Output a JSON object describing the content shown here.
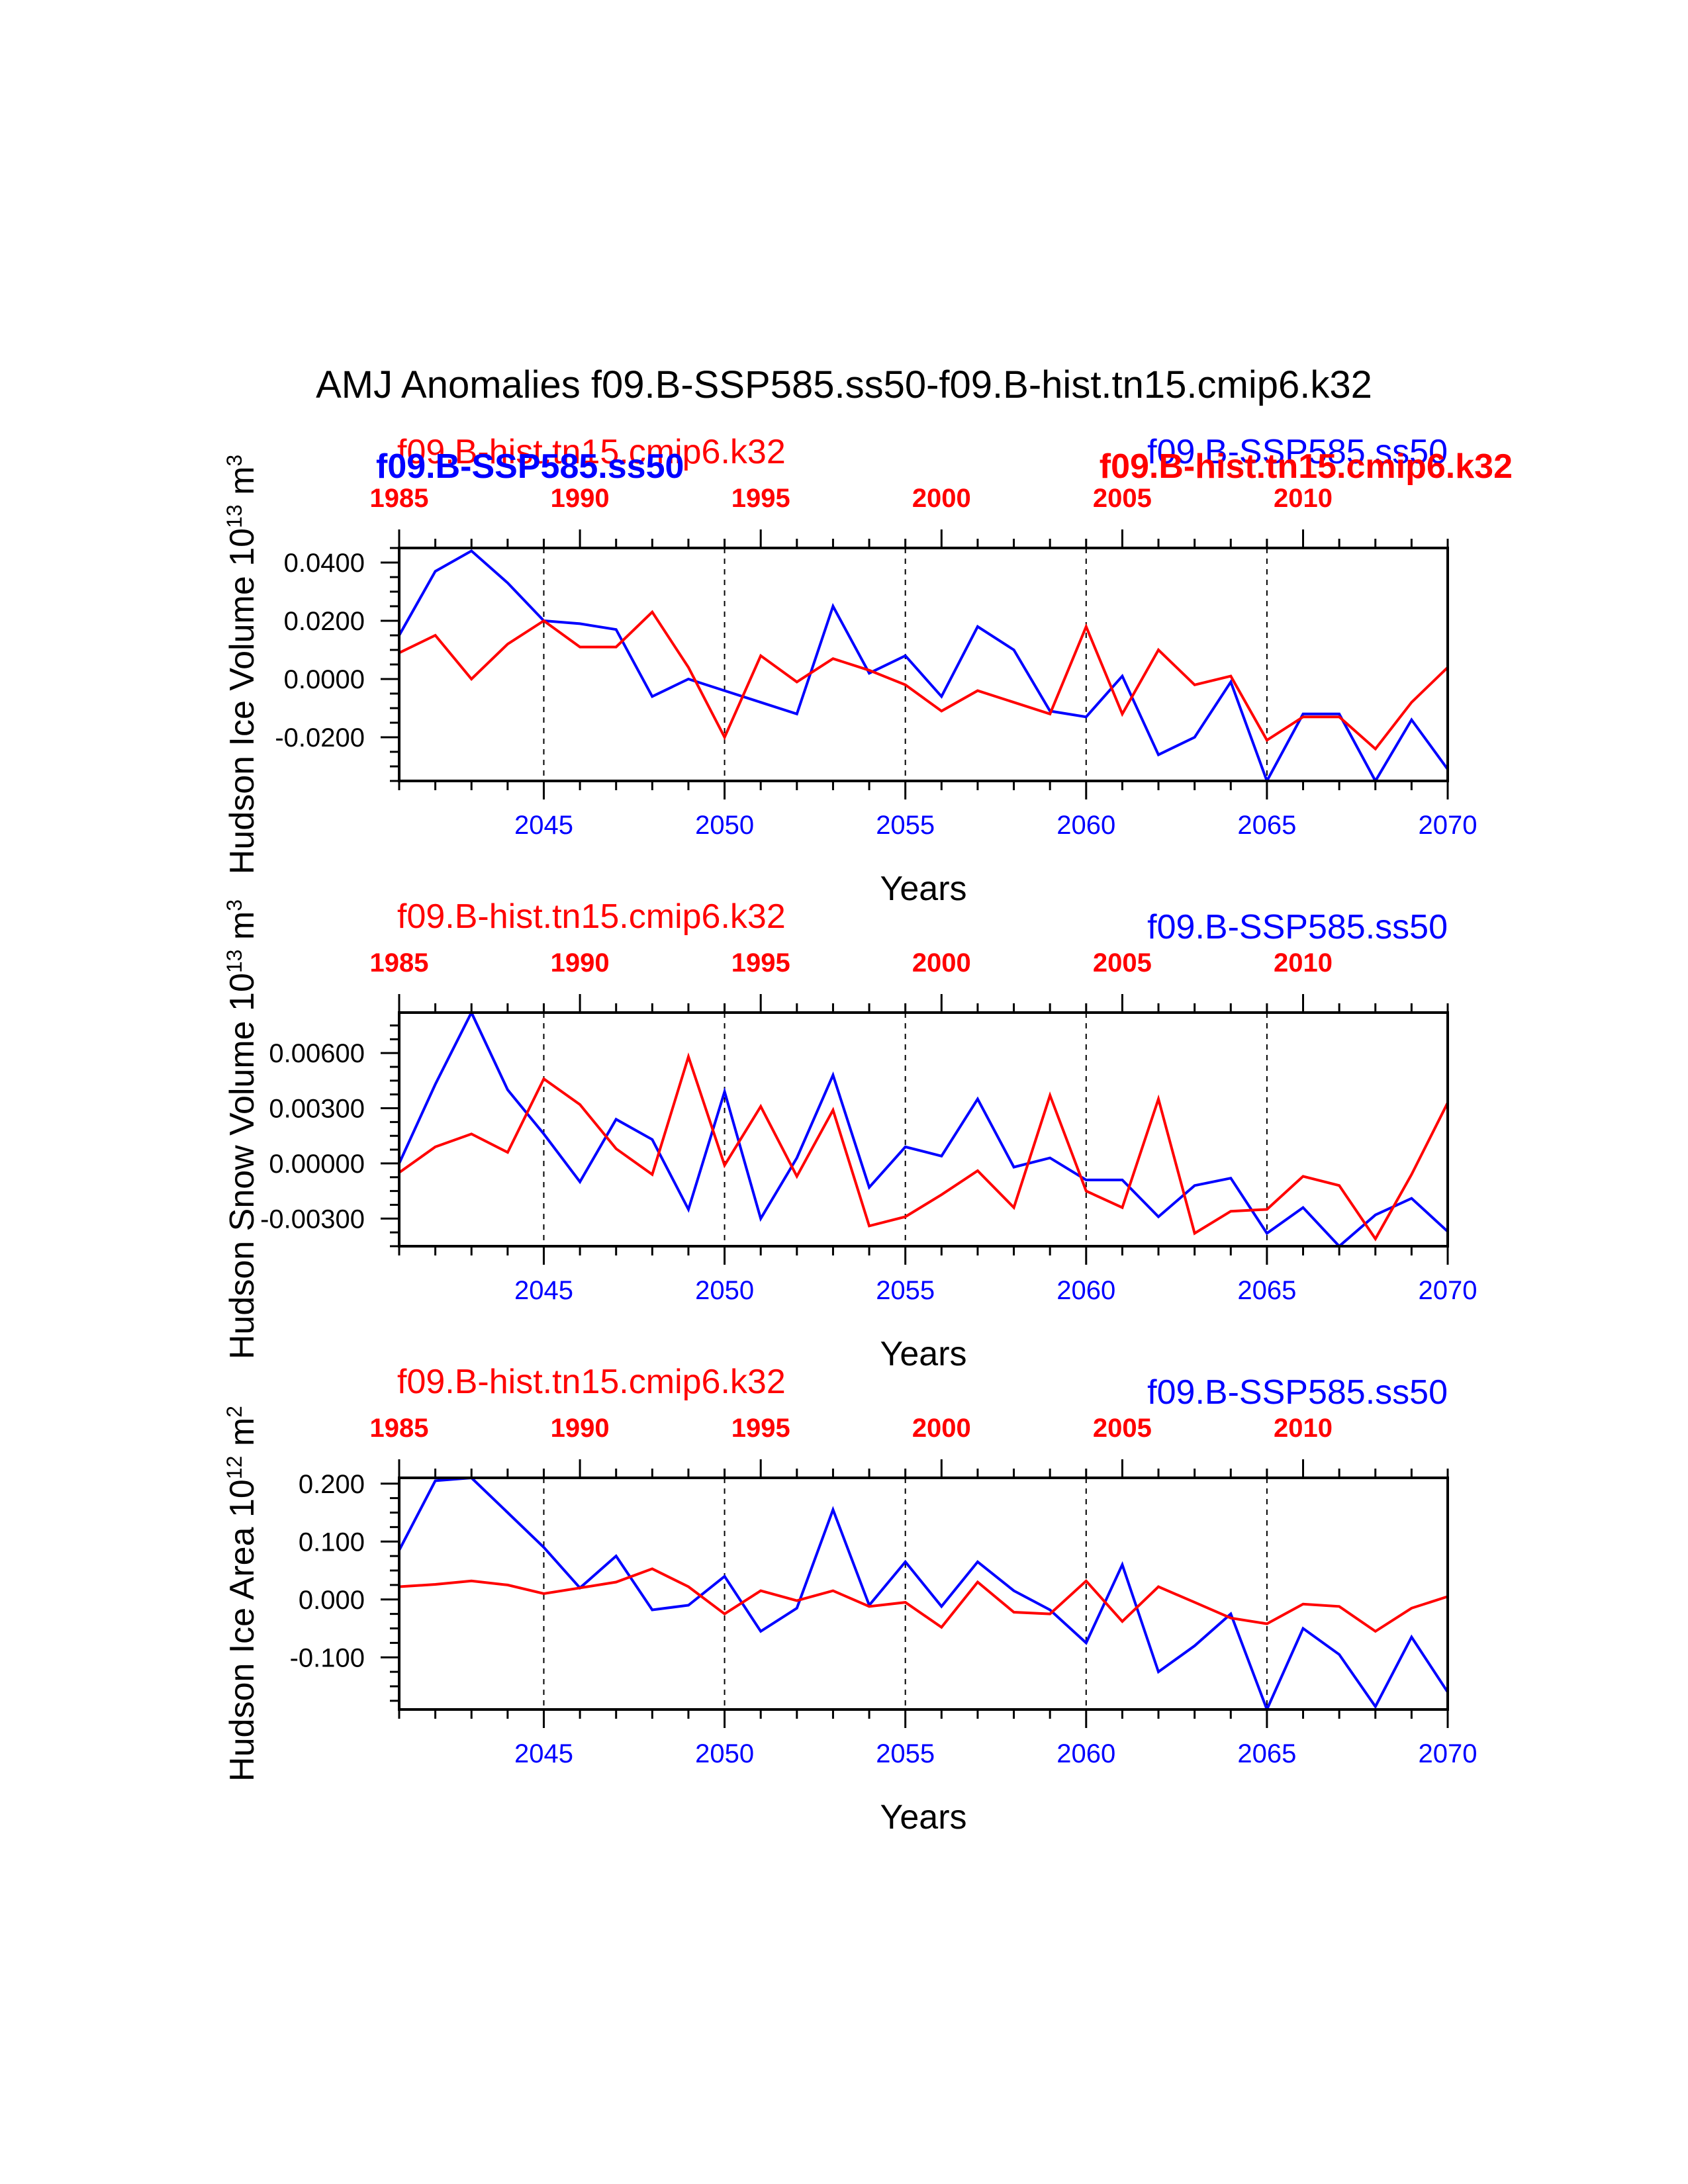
{
  "figure": {
    "title": "AMJ Anomalies f09.B-SSP585.ss50-f09.B-hist.tn15.cmip6.k32"
  },
  "colors": {
    "ssp": "#0000ff",
    "hist": "#ff0000",
    "axis": "#000000"
  },
  "chart_data": [
    {
      "type": "line",
      "ylabel": "Hudson Ice Volume 10",
      "ylabel_exp": "13",
      "ylabel_unit": " m",
      "ylabel_unit_exp": "3",
      "xlabel": "Years",
      "xlim": [
        2041,
        2070
      ],
      "ylim": [
        -0.035,
        0.045
      ],
      "yticks": [
        -0.02,
        0.0,
        0.02,
        0.04
      ],
      "ytick_labels": [
        "-0.0200",
        "0.0000",
        "0.0200",
        "0.0400"
      ],
      "xticks_bottom": [
        "2045",
        "2050",
        "2055",
        "2060",
        "2065",
        "2070"
      ],
      "xticks_top": [
        "1985",
        "1990",
        "1995",
        "2000",
        "2005",
        "2010"
      ],
      "top_axis_range": [
        1985,
        2014
      ],
      "label_hist": "f09.B-hist.tn15.cmip6.k32",
      "label_ssp": "f09.B-SSP585.ss50",
      "x": [
        2041,
        2042,
        2043,
        2044,
        2045,
        2046,
        2047,
        2048,
        2049,
        2050,
        2051,
        2052,
        2053,
        2054,
        2055,
        2056,
        2057,
        2058,
        2059,
        2060,
        2061,
        2062,
        2063,
        2064,
        2065,
        2066,
        2067,
        2068,
        2069,
        2070
      ],
      "series": [
        {
          "name": "f09.B-SSP585.ss50",
          "color": "#0000ff",
          "values": [
            0.015,
            0.037,
            0.044,
            0.033,
            0.02,
            0.019,
            0.017,
            -0.006,
            0.0,
            -0.004,
            -0.008,
            -0.012,
            0.025,
            0.002,
            0.008,
            -0.006,
            0.018,
            0.01,
            -0.011,
            -0.013,
            0.001,
            -0.026,
            -0.02,
            -0.001,
            -0.035,
            -0.012,
            -0.012,
            -0.035,
            -0.014,
            -0.031
          ]
        },
        {
          "name": "f09.B-hist.tn15.cmip6.k32",
          "color": "#ff0000",
          "values": [
            0.009,
            0.015,
            0.0,
            0.012,
            0.02,
            0.011,
            0.011,
            0.023,
            0.004,
            -0.02,
            0.008,
            -0.001,
            0.007,
            0.003,
            -0.002,
            -0.011,
            -0.004,
            -0.008,
            -0.012,
            0.018,
            -0.012,
            0.01,
            -0.002,
            0.001,
            -0.021,
            -0.013,
            -0.013,
            -0.024,
            -0.008,
            0.004
          ]
        }
      ]
    },
    {
      "type": "line",
      "ylabel": "Hudson Snow Volume 10",
      "ylabel_exp": "13",
      "ylabel_unit": " m",
      "ylabel_unit_exp": "3",
      "xlabel": "Years",
      "xlim": [
        2041,
        2070
      ],
      "ylim": [
        -0.0045,
        0.0082
      ],
      "yticks": [
        -0.003,
        0.0,
        0.003,
        0.006
      ],
      "ytick_labels": [
        "-0.00300",
        "0.00000",
        "0.00300",
        "0.00600"
      ],
      "xticks_bottom": [
        "2045",
        "2050",
        "2055",
        "2060",
        "2065",
        "2070"
      ],
      "xticks_top": [
        "1985",
        "1990",
        "1995",
        "2000",
        "2005",
        "2010"
      ],
      "top_axis_range": [
        1985,
        2014
      ],
      "label_hist": "f09.B-hist.tn15.cmip6.k32",
      "label_ssp": "f09.B-SSP585.ss50",
      "x": [
        2041,
        2042,
        2043,
        2044,
        2045,
        2046,
        2047,
        2048,
        2049,
        2050,
        2051,
        2052,
        2053,
        2054,
        2055,
        2056,
        2057,
        2058,
        2059,
        2060,
        2061,
        2062,
        2063,
        2064,
        2065,
        2066,
        2067,
        2068,
        2069,
        2070
      ],
      "series": [
        {
          "name": "f09.B-SSP585.ss50",
          "color": "#0000ff",
          "values": [
            0.0,
            0.0043,
            0.0082,
            0.004,
            0.0016,
            -0.001,
            0.0024,
            0.0013,
            -0.0025,
            0.0039,
            -0.003,
            0.0003,
            0.0048,
            -0.0013,
            0.0009,
            0.0004,
            0.0035,
            -0.0002,
            0.0003,
            -0.0009,
            -0.0009,
            -0.0029,
            -0.0012,
            -0.0008,
            -0.0038,
            -0.0024,
            -0.0045,
            -0.0028,
            -0.0019,
            -0.0037
          ]
        },
        {
          "name": "f09.B-hist.tn15.cmip6.k32",
          "color": "#ff0000",
          "values": [
            -0.0005,
            0.0009,
            0.0016,
            0.0006,
            0.0046,
            0.0032,
            0.0008,
            -0.0006,
            0.0058,
            -0.0001,
            0.0031,
            -0.0007,
            0.0029,
            -0.0034,
            -0.0029,
            -0.0017,
            -0.0004,
            -0.0024,
            0.0037,
            -0.0015,
            -0.0024,
            0.0035,
            -0.0038,
            -0.0026,
            -0.0025,
            -0.0007,
            -0.0012,
            -0.0041,
            -0.0006,
            0.0033
          ]
        }
      ]
    },
    {
      "type": "line",
      "ylabel": "Hudson Ice Area 10",
      "ylabel_exp": "12",
      "ylabel_unit": " m",
      "ylabel_unit_exp": "2",
      "xlabel": "Years",
      "xlim": [
        2041,
        2070
      ],
      "ylim": [
        -0.19,
        0.21
      ],
      "yticks": [
        -0.1,
        0.0,
        0.1,
        0.2
      ],
      "ytick_labels": [
        "-0.100",
        "0.000",
        "0.100",
        "0.200"
      ],
      "xticks_bottom": [
        "2045",
        "2050",
        "2055",
        "2060",
        "2065",
        "2070"
      ],
      "xticks_top": [
        "1985",
        "1990",
        "1995",
        "2000",
        "2005",
        "2010"
      ],
      "top_axis_range": [
        1985,
        2014
      ],
      "label_hist": "f09.B-hist.tn15.cmip6.k32",
      "label_ssp": "f09.B-SSP585.ss50",
      "x": [
        2041,
        2042,
        2043,
        2044,
        2045,
        2046,
        2047,
        2048,
        2049,
        2050,
        2051,
        2052,
        2053,
        2054,
        2055,
        2056,
        2057,
        2058,
        2059,
        2060,
        2061,
        2062,
        2063,
        2064,
        2065,
        2066,
        2067,
        2068,
        2069,
        2070
      ],
      "series": [
        {
          "name": "f09.B-SSP585.ss50",
          "color": "#0000ff",
          "values": [
            0.085,
            0.205,
            0.21,
            0.15,
            0.09,
            0.02,
            0.075,
            -0.018,
            -0.01,
            0.04,
            -0.055,
            -0.015,
            0.155,
            -0.01,
            0.065,
            -0.012,
            0.065,
            0.015,
            -0.018,
            -0.075,
            0.06,
            -0.125,
            -0.08,
            -0.025,
            -0.19,
            -0.05,
            -0.095,
            -0.185,
            -0.065,
            -0.16
          ]
        },
        {
          "name": "f09.B-hist.tn15.cmip6.k32",
          "color": "#ff0000",
          "values": [
            0.022,
            0.026,
            0.032,
            0.025,
            0.01,
            0.02,
            0.03,
            0.053,
            0.022,
            -0.025,
            0.015,
            -0.002,
            0.015,
            -0.012,
            -0.005,
            -0.048,
            0.03,
            -0.022,
            -0.025,
            0.032,
            -0.038,
            0.022,
            -0.005,
            -0.032,
            -0.042,
            -0.008,
            -0.012,
            -0.055,
            -0.015,
            0.005
          ]
        }
      ]
    }
  ]
}
